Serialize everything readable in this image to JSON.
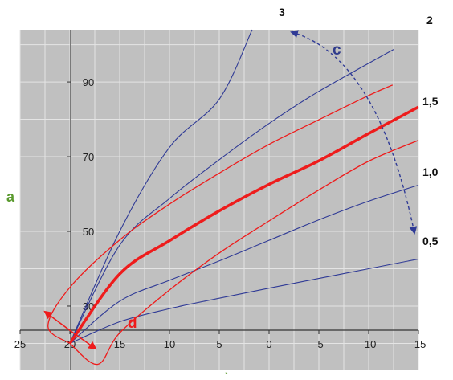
{
  "chart_data": {
    "type": "line",
    "title": "",
    "xlabel": "",
    "ylabel": "",
    "xlim": [
      25,
      -15
    ],
    "ylim": [
      13,
      104
    ],
    "x_ticks": [
      25,
      20,
      15,
      10,
      5,
      0,
      -5,
      -10,
      -15
    ],
    "x_tick_labels": [
      "25",
      "20",
      "15",
      "10",
      "5",
      "0",
      "-5",
      "-10",
      "-15"
    ],
    "y_ticks": [
      30,
      50,
      70,
      90
    ],
    "y_tick_labels": [
      "30",
      "50",
      "70",
      "90"
    ],
    "grid": true,
    "background": "#c0c0c0",
    "blue_series": [
      {
        "name": "0,5",
        "points": [
          [
            20,
            20
          ],
          [
            15,
            25.8
          ],
          [
            10,
            29.3
          ],
          [
            5,
            32.1
          ],
          [
            0,
            34.8
          ],
          [
            -5,
            37.4
          ],
          [
            -10,
            40
          ],
          [
            -15,
            42.6
          ]
        ]
      },
      {
        "name": "1,0",
        "points": [
          [
            20,
            20
          ],
          [
            15,
            31.3
          ],
          [
            10,
            36.9
          ],
          [
            5,
            42.1
          ],
          [
            0,
            47.6
          ],
          [
            -5,
            53.1
          ],
          [
            -10,
            58.1
          ],
          [
            -15,
            62.4
          ]
        ]
      },
      {
        "name": "2",
        "points": [
          [
            20,
            20
          ],
          [
            15,
            46.3
          ],
          [
            10,
            58.8
          ],
          [
            5,
            69.2
          ],
          [
            0,
            78.9
          ],
          [
            -5,
            87.5
          ],
          [
            -12.5,
            98.7
          ]
        ]
      },
      {
        "name": "3",
        "points": [
          [
            20,
            20
          ],
          [
            15,
            50
          ],
          [
            10,
            72.5
          ],
          [
            5,
            85.4
          ],
          [
            1.7,
            104
          ]
        ]
      }
    ],
    "red_series": [
      {
        "name": "1,5",
        "bold": true,
        "points": [
          [
            20,
            20
          ],
          [
            15,
            38.6
          ],
          [
            10,
            47.5
          ],
          [
            5,
            55.5
          ],
          [
            0,
            62.6
          ],
          [
            -5,
            68.9
          ],
          [
            -10,
            76.2
          ],
          [
            -15,
            83.3
          ]
        ]
      },
      {
        "name": "",
        "bold": false,
        "points": [
          [
            20,
            20
          ],
          [
            22.2,
            24.6
          ],
          [
            20,
            35
          ],
          [
            15,
            47.7
          ],
          [
            10,
            57.3
          ],
          [
            5,
            65.6
          ],
          [
            0,
            73.3
          ],
          [
            -5,
            79.9
          ],
          [
            -10,
            86.4
          ],
          [
            -12.4,
            89.2
          ]
        ]
      },
      {
        "name": "",
        "bold": false,
        "points": [
          [
            20,
            20
          ],
          [
            17.2,
            14.4
          ],
          [
            15,
            22.8
          ],
          [
            10,
            34.3
          ],
          [
            5,
            44.2
          ],
          [
            0,
            52.8
          ],
          [
            -5,
            61.1
          ],
          [
            -10,
            68.8
          ],
          [
            -15,
            74.4
          ]
        ]
      }
    ],
    "labels": {
      "a": "a",
      "c": "c",
      "d": "d",
      "bottom": "`"
    },
    "colors": {
      "blue": "#303b96",
      "red": "#ee1c1c",
      "label_a": "#5a9a2e",
      "label_c": "#2f3b8c",
      "label_d": "#ee1c1c"
    }
  }
}
